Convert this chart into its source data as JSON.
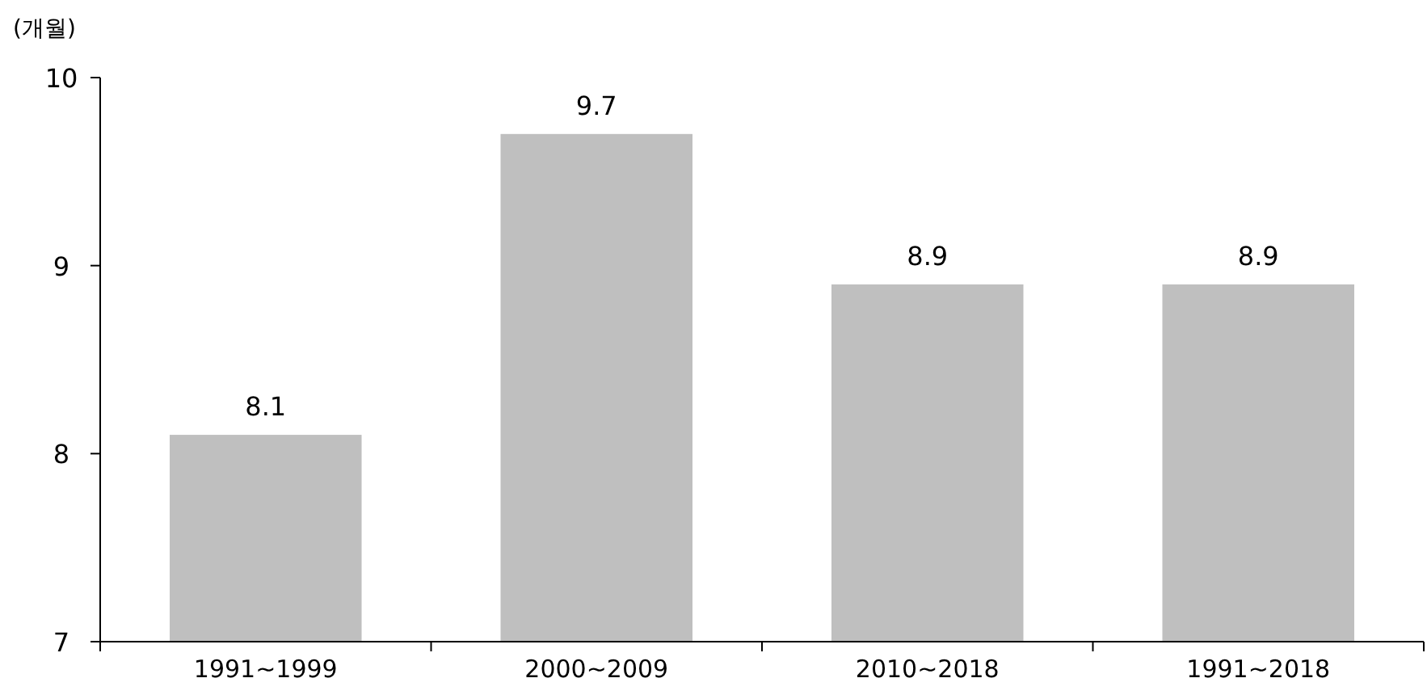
{
  "chart_data": {
    "type": "bar",
    "ylabel": "(개월)",
    "categories": [
      "1991~1999",
      "2000~2009",
      "2010~2018",
      "1991~2018"
    ],
    "values": [
      8.1,
      9.7,
      8.9,
      8.9
    ],
    "color": "#bfbfbf",
    "ylim": [
      7,
      10
    ],
    "yticks": [
      7,
      8,
      9,
      10
    ],
    "data_labels": true
  }
}
